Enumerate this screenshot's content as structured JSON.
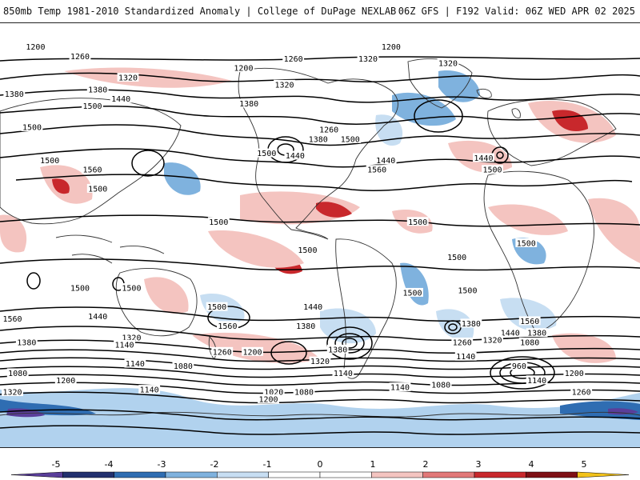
{
  "header": {
    "title_left": "850mb Temp 1981-2010 Standardized Anomaly | College of DuPage NEXLAB",
    "title_right": "06Z GFS | F192 Valid: 06Z WED APR 02 2025"
  },
  "colorbar": {
    "ticks": [
      "-5",
      "-4",
      "-3",
      "-2",
      "-1",
      "0",
      "1",
      "2",
      "3",
      "4",
      "5"
    ],
    "colors": [
      "#5a3e9a",
      "#22306e",
      "#2f6db2",
      "#7fb2de",
      "#c7def2",
      "#ffffff",
      "#ffffff",
      "#f4c4c0",
      "#e27878",
      "#c8282c",
      "#7e0f14",
      "#f2c21a"
    ]
  },
  "map": {
    "ocean_color": "#ffffff",
    "land_outline_color": "#333333",
    "contour_labels": [
      {
        "text": "1200",
        "lon": -160,
        "lat": 80
      },
      {
        "text": "1200",
        "lon": 40,
        "lat": 80
      },
      {
        "text": "1260",
        "lon": -135,
        "lat": 76
      },
      {
        "text": "1260",
        "lon": -15,
        "lat": 75
      },
      {
        "text": "1320",
        "lon": 27,
        "lat": 75
      },
      {
        "text": "1320",
        "lon": 72,
        "lat": 73
      },
      {
        "text": "1200",
        "lon": -43,
        "lat": 71
      },
      {
        "text": "1320",
        "lon": -108,
        "lat": 67
      },
      {
        "text": "1320",
        "lon": -20,
        "lat": 64
      },
      {
        "text": "1380",
        "lon": -172,
        "lat": 60
      },
      {
        "text": "1380",
        "lon": -125,
        "lat": 62
      },
      {
        "text": "1440",
        "lon": -112,
        "lat": 58
      },
      {
        "text": "1500",
        "lon": -128,
        "lat": 55
      },
      {
        "text": "1380",
        "lon": -40,
        "lat": 56
      },
      {
        "text": "1260",
        "lon": 5,
        "lat": 45
      },
      {
        "text": "1380",
        "lon": -1,
        "lat": 41
      },
      {
        "text": "1500",
        "lon": 17,
        "lat": 41
      },
      {
        "text": "1500",
        "lon": -162,
        "lat": 46
      },
      {
        "text": "1500",
        "lon": -30,
        "lat": 35
      },
      {
        "text": "1440",
        "lon": -14,
        "lat": 34
      },
      {
        "text": "1440",
        "lon": 37,
        "lat": 32
      },
      {
        "text": "1440",
        "lon": 92,
        "lat": 33
      },
      {
        "text": "1500",
        "lon": 97,
        "lat": 28
      },
      {
        "text": "1500",
        "lon": -152,
        "lat": 32
      },
      {
        "text": "1560",
        "lon": -128,
        "lat": 28
      },
      {
        "text": "1560",
        "lon": 32,
        "lat": 28
      },
      {
        "text": "1500",
        "lon": -125,
        "lat": 20
      },
      {
        "text": "1500",
        "lon": -57,
        "lat": 6
      },
      {
        "text": "1500",
        "lon": 55,
        "lat": 6
      },
      {
        "text": "1500",
        "lon": 116,
        "lat": -3
      },
      {
        "text": "1500",
        "lon": -7,
        "lat": -6
      },
      {
        "text": "1500",
        "lon": 77,
        "lat": -9
      },
      {
        "text": "1500",
        "lon": -135,
        "lat": -22
      },
      {
        "text": "1500",
        "lon": -106,
        "lat": -22
      },
      {
        "text": "1500",
        "lon": 52,
        "lat": -24
      },
      {
        "text": "1500",
        "lon": 83,
        "lat": -23
      },
      {
        "text": "1500",
        "lon": -58,
        "lat": -30
      },
      {
        "text": "1440",
        "lon": -4,
        "lat": -30
      },
      {
        "text": "1560",
        "lon": -173,
        "lat": -35
      },
      {
        "text": "1560",
        "lon": 118,
        "lat": -36
      },
      {
        "text": "1440",
        "lon": -125,
        "lat": -34
      },
      {
        "text": "1380",
        "lon": 85,
        "lat": -37
      },
      {
        "text": "1560",
        "lon": -52,
        "lat": -38
      },
      {
        "text": "1380",
        "lon": -8,
        "lat": -38
      },
      {
        "text": "1440",
        "lon": 107,
        "lat": -41
      },
      {
        "text": "1380",
        "lon": 122,
        "lat": -41
      },
      {
        "text": "1380",
        "lon": -165,
        "lat": -45
      },
      {
        "text": "1320",
        "lon": -106,
        "lat": -43
      },
      {
        "text": "1140",
        "lon": -110,
        "lat": -46
      },
      {
        "text": "1260",
        "lon": 80,
        "lat": -45
      },
      {
        "text": "1320",
        "lon": 97,
        "lat": -44
      },
      {
        "text": "1080",
        "lon": 118,
        "lat": -45
      },
      {
        "text": "1380",
        "lon": 10,
        "lat": -48
      },
      {
        "text": "1260",
        "lon": -55,
        "lat": -49
      },
      {
        "text": "1200",
        "lon": -38,
        "lat": -49
      },
      {
        "text": "1140",
        "lon": 82,
        "lat": -51
      },
      {
        "text": "1320",
        "lon": 0,
        "lat": -53
      },
      {
        "text": "1140",
        "lon": -104,
        "lat": -54
      },
      {
        "text": "1080",
        "lon": -77,
        "lat": -55
      },
      {
        "text": "960",
        "lon": 112,
        "lat": -55
      },
      {
        "text": "1080",
        "lon": -170,
        "lat": -58
      },
      {
        "text": "1140",
        "lon": 13,
        "lat": -58
      },
      {
        "text": "1200",
        "lon": 143,
        "lat": -58
      },
      {
        "text": "1200",
        "lon": -143,
        "lat": -61
      },
      {
        "text": "1140",
        "lon": 122,
        "lat": -61
      },
      {
        "text": "1080",
        "lon": 68,
        "lat": -63
      },
      {
        "text": "1140",
        "lon": 45,
        "lat": -64
      },
      {
        "text": "1140",
        "lon": -96,
        "lat": -65
      },
      {
        "text": "1320",
        "lon": -173,
        "lat": -66
      },
      {
        "text": "1020",
        "lon": -26,
        "lat": -66
      },
      {
        "text": "1080",
        "lon": -9,
        "lat": -66
      },
      {
        "text": "1260",
        "lon": 147,
        "lat": -66
      },
      {
        "text": "1200",
        "lon": -29,
        "lat": -69
      }
    ]
  }
}
